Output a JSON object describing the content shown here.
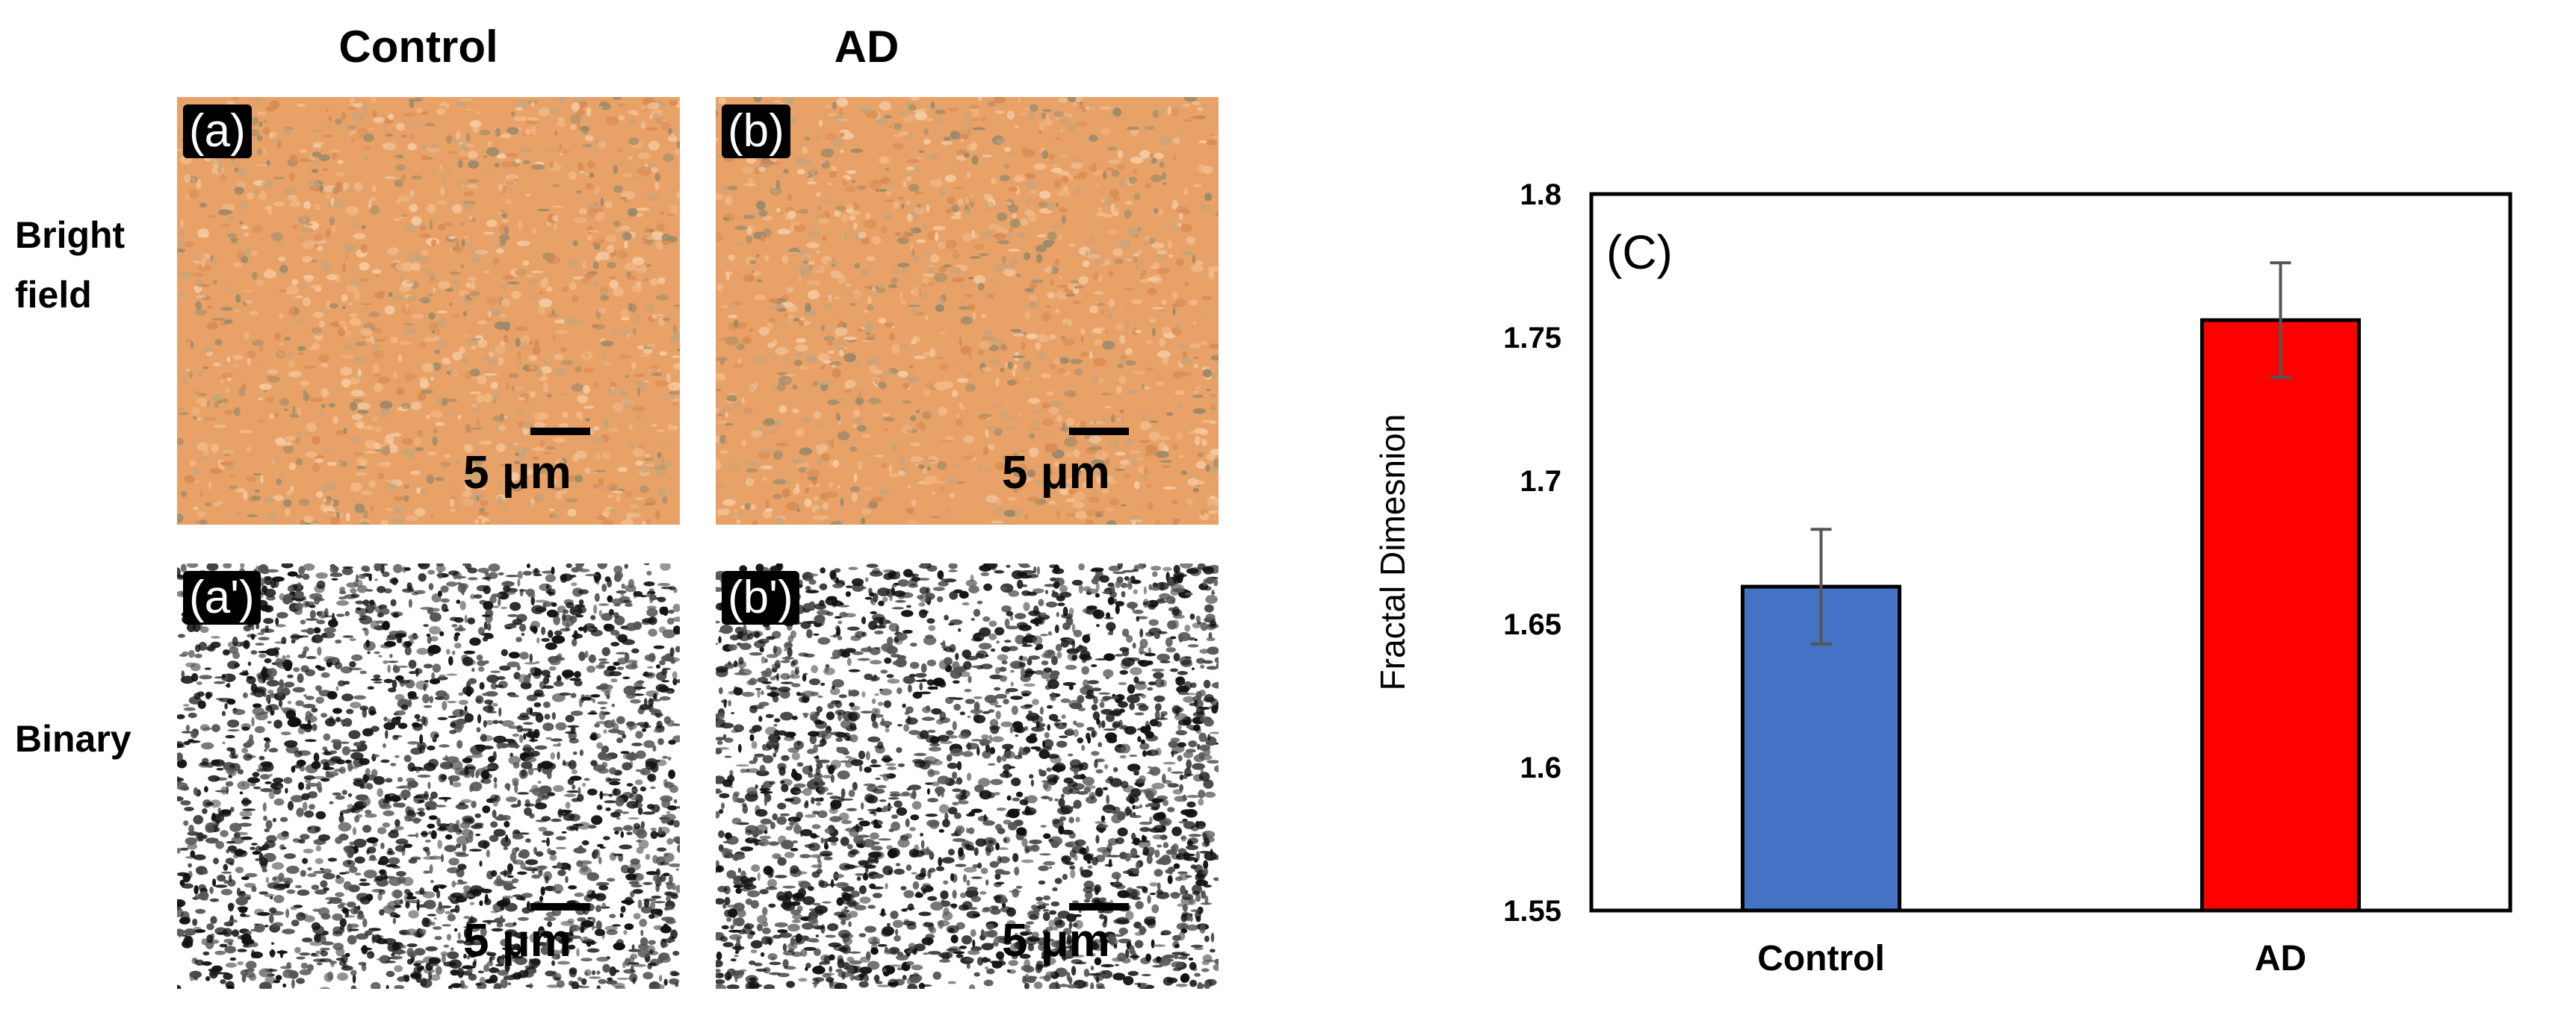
{
  "micrographs": {
    "columns": [
      "Control",
      "AD"
    ],
    "rows": [
      "Bright\nfield",
      "Binary"
    ],
    "panels": [
      {
        "tag": "(a)",
        "type": "bright",
        "scale": "5 μm"
      },
      {
        "tag": "(b)",
        "type": "bright",
        "scale": "5 μm"
      },
      {
        "tag": "(a')",
        "type": "binary",
        "scale": "5 μm"
      },
      {
        "tag": "(b')",
        "type": "binary",
        "scale": "5 μm"
      }
    ],
    "colors": {
      "bright_base": "#e8a268",
      "binary_base": "#ffffff"
    }
  },
  "chart_data": {
    "type": "bar",
    "panel_label": "(C)",
    "categories": [
      "Control",
      "AD"
    ],
    "values": [
      1.663,
      1.756
    ],
    "errors": [
      0.02,
      0.02
    ],
    "colors": [
      "#4472c4",
      "#ff0000"
    ],
    "ylabel": "Fractal Dimesnion",
    "xlabel": "",
    "ylim": [
      1.55,
      1.8
    ],
    "yticks": [
      "1.55",
      "1.6",
      "1.65",
      "1.7",
      "1.75",
      "1.8"
    ],
    "grid": false
  }
}
